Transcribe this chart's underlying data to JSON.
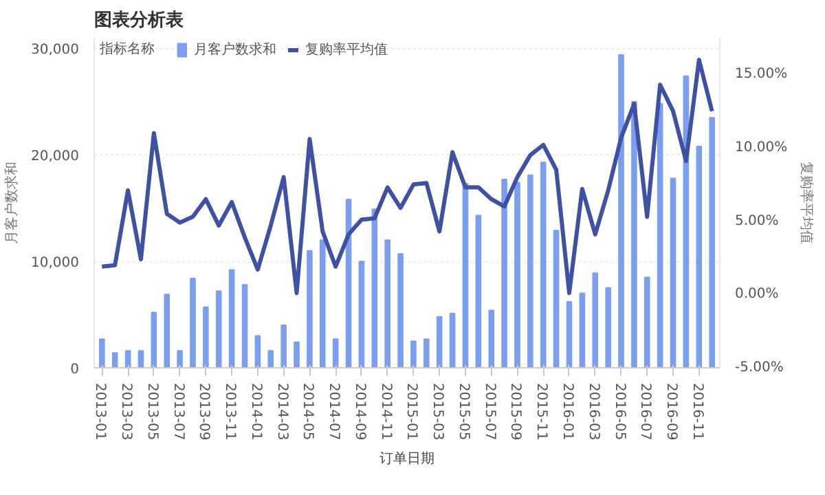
{
  "chart_data": {
    "type": "bar",
    "title": "图表分析表",
    "xlabel": "订单日期",
    "ylabel": "月客户数求和",
    "y2label": "复购率平均值",
    "legend_title": "指标名称",
    "legend": "top",
    "grid": "y",
    "categories": [
      "2013-01",
      null,
      "2013-03",
      null,
      "2013-05",
      null,
      "2013-07",
      null,
      "2013-09",
      null,
      "2013-11",
      null,
      "2014-01",
      null,
      "2014-03",
      null,
      "2014-05",
      null,
      "2014-07",
      null,
      "2014-09",
      null,
      "2014-11",
      null,
      "2015-01",
      null,
      "2015-03",
      null,
      "2015-05",
      null,
      "2015-07",
      null,
      "2015-09",
      null,
      "2015-11",
      null,
      "2016-01",
      null,
      "2016-03",
      null,
      "2016-05",
      null,
      "2016-07",
      null,
      "2016-09",
      null,
      "2016-11",
      null
    ],
    "ylim": [
      0,
      31000
    ],
    "yticks": [
      0,
      {
        "value": 10000,
        "label": "10,000"
      },
      {
        "value": 20000,
        "label": "20,000"
      },
      {
        "value": 30000,
        "label": "30,000"
      }
    ],
    "y2lim": [
      -5,
      17.5
    ],
    "y2ticks": [
      {
        "value": -5,
        "label": "-5.00%"
      },
      {
        "value": 0,
        "label": "0.00%"
      },
      {
        "value": 5,
        "label": "5.00%"
      },
      {
        "value": 10,
        "label": "10.00%"
      },
      {
        "value": 15,
        "label": "15.00%"
      }
    ],
    "series": [
      {
        "name": "月客户数求和",
        "color": "#7d9ef0",
        "values": [
          2700,
          1400,
          1600,
          1600,
          5200,
          6900,
          1600,
          8400,
          5700,
          7200,
          9200,
          7800,
          3000,
          1600,
          4000,
          2400,
          11000,
          12000,
          2700,
          15800,
          10000,
          14900,
          12000,
          10700,
          2500,
          2700,
          4800,
          5100,
          17300,
          14300,
          5400,
          17700,
          17400,
          18100,
          19300,
          12900,
          6200,
          7000,
          8900,
          7500,
          29400,
          25000,
          8500,
          24800,
          17800,
          27400,
          20800,
          23500
        ]
      },
      {
        "name": "复购率平均值",
        "type": "line",
        "axis": "y2",
        "color": "#3f51a3",
        "line_style": "solid",
        "marker": "none",
        "values": [
          1.9,
          2.0,
          7.1,
          2.4,
          11.0,
          5.5,
          4.9,
          5.3,
          6.5,
          4.7,
          6.3,
          3.9,
          1.7,
          4.7,
          8.0,
          0.1,
          10.6,
          4.3,
          1.9,
          4.1,
          5.1,
          5.2,
          7.3,
          5.9,
          7.5,
          7.6,
          4.3,
          9.7,
          7.3,
          7.3,
          6.5,
          6.0,
          8.0,
          9.5,
          10.2,
          8.5,
          0.1,
          7.2,
          4.1,
          7.1,
          10.7,
          13.0,
          5.3,
          14.3,
          12.5,
          9.1,
          16.0,
          12.5
        ]
      }
    ]
  }
}
